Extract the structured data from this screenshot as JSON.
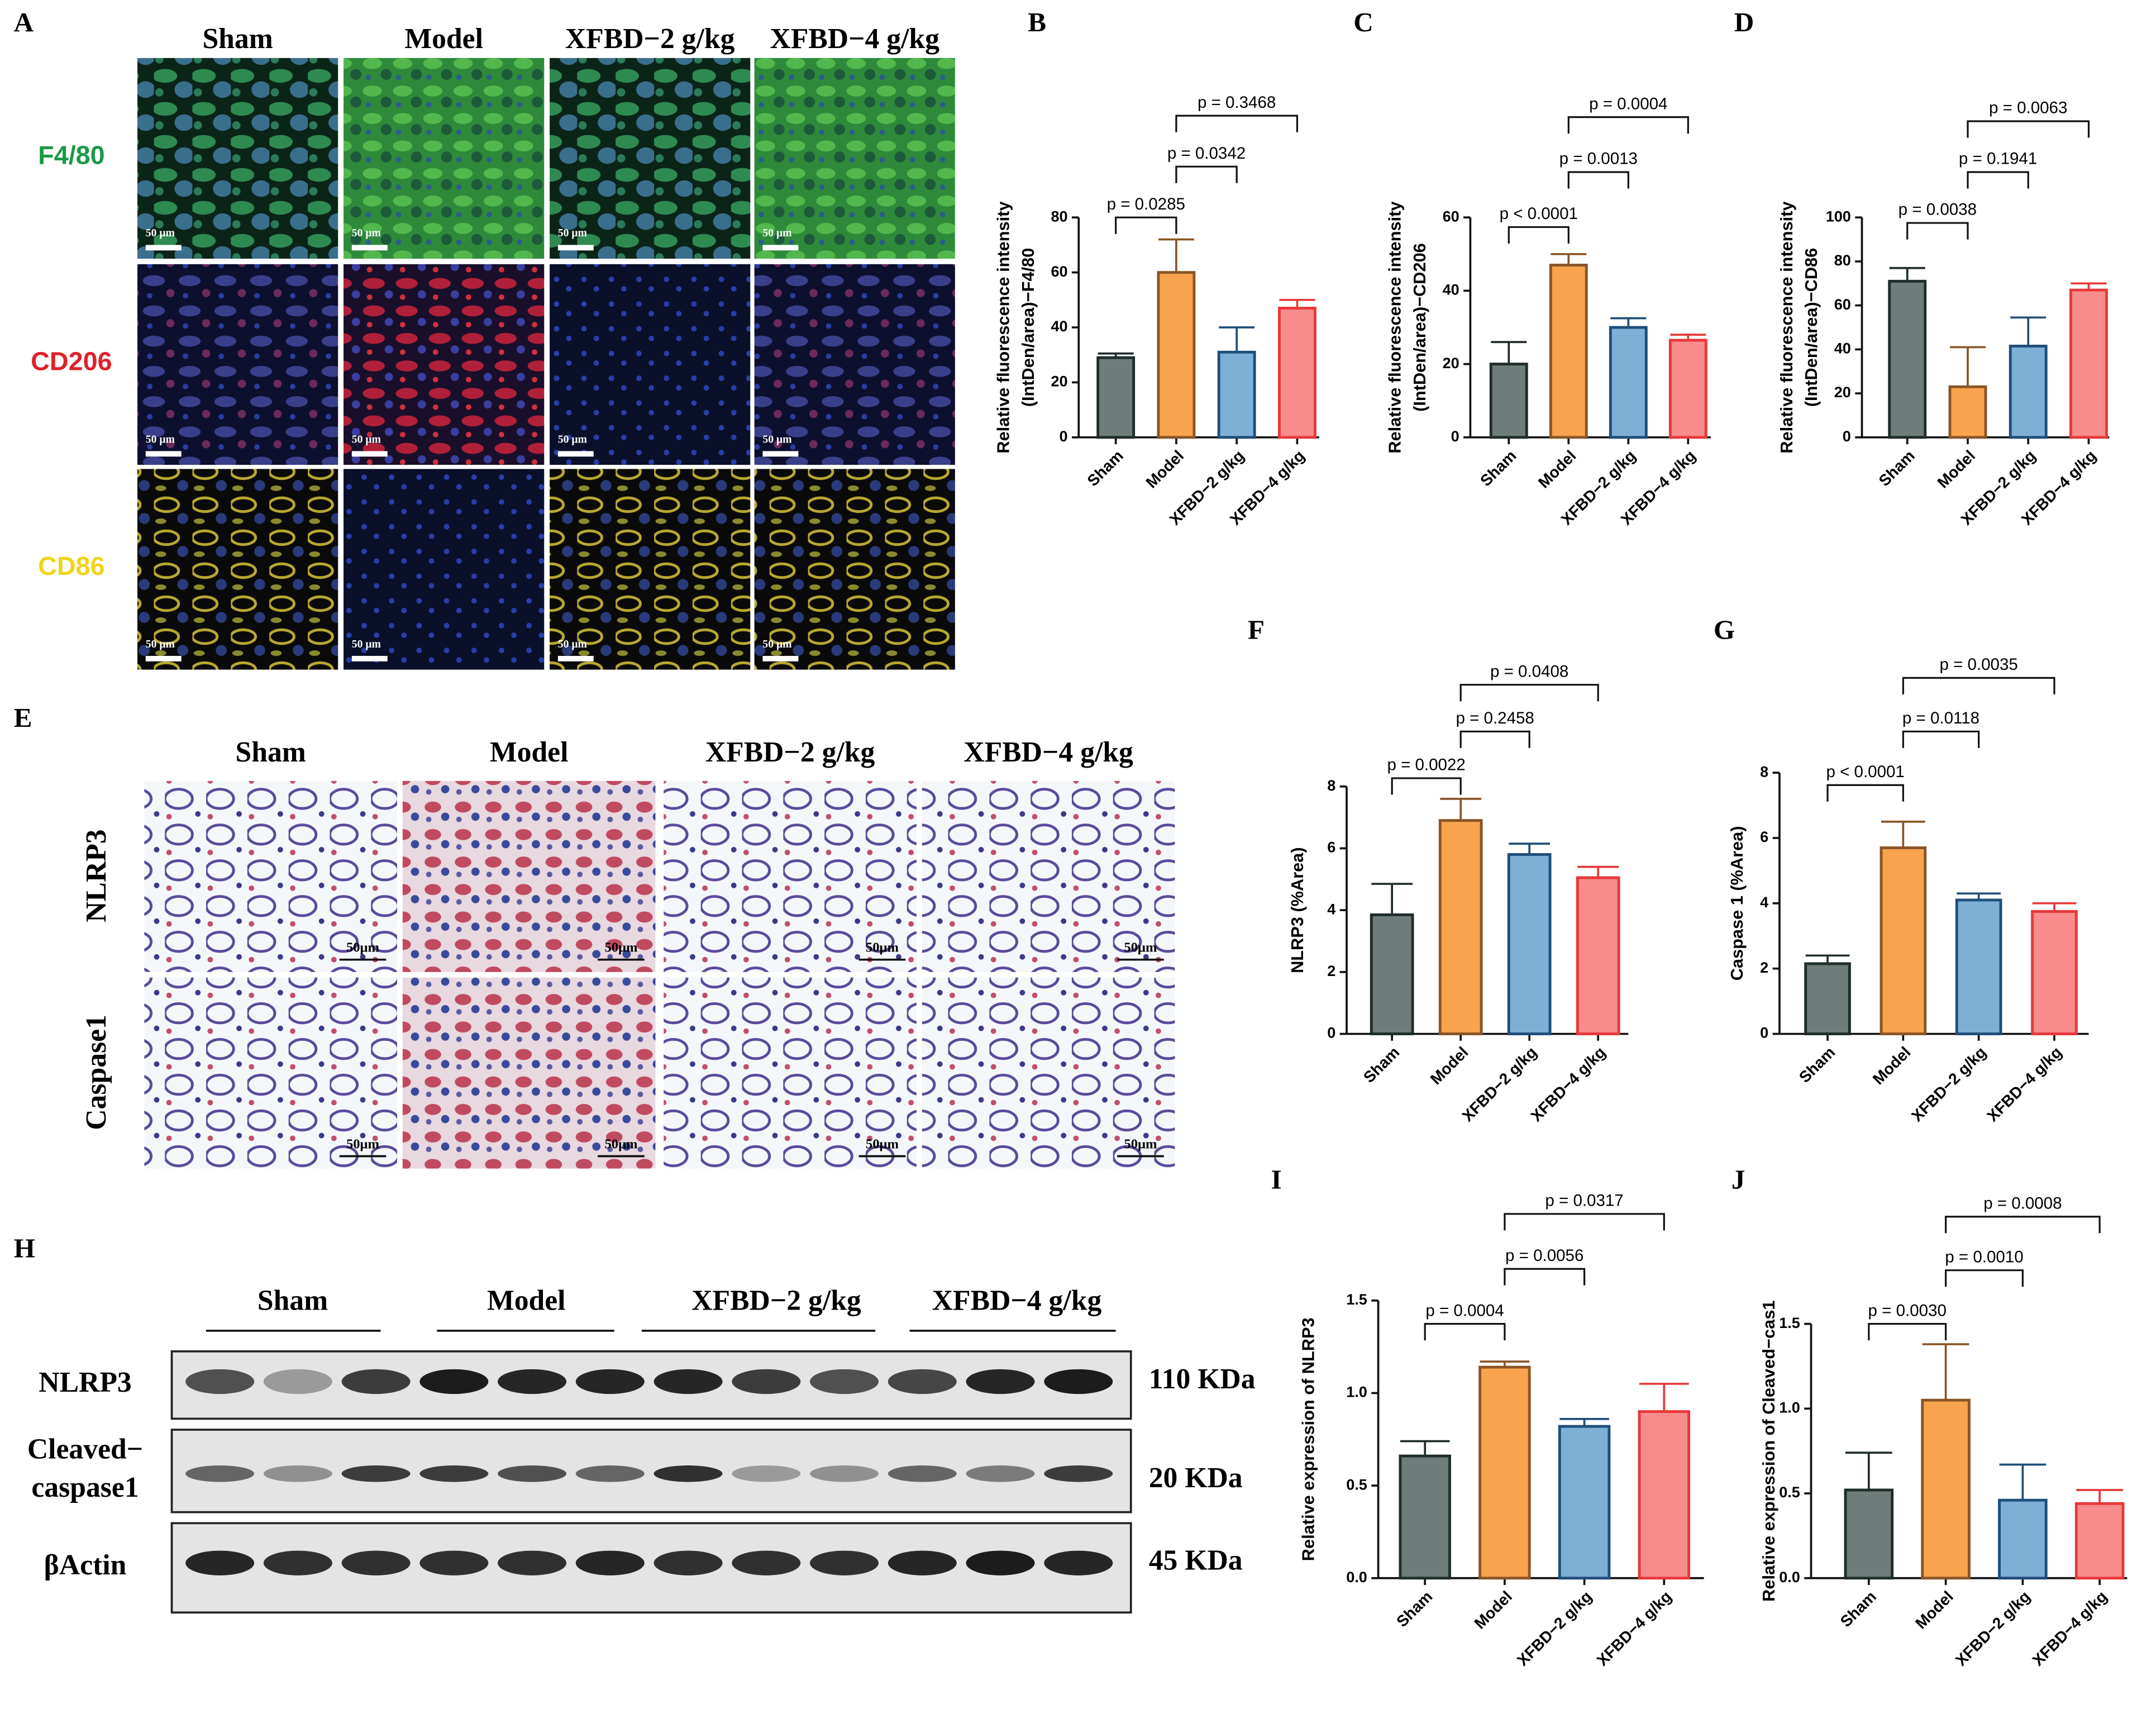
{
  "figure": {
    "panel_a": {
      "label": "A",
      "columns": [
        "Sham",
        "Model",
        "XFBD−2 g/kg",
        "XFBD−4 g/kg"
      ],
      "rows": [
        "F4/80",
        "CD206",
        "CD86"
      ],
      "scale_bar": "50 μm"
    },
    "panel_e": {
      "label": "E",
      "columns": [
        "Sham",
        "Model",
        "XFBD−2 g/kg",
        "XFBD−4 g/kg"
      ],
      "rows": [
        "NLRP3",
        "Caspase1"
      ],
      "scale_bar": "50μm"
    },
    "panel_h": {
      "label": "H",
      "columns": [
        "Sham",
        "Model",
        "XFBD−2 g/kg",
        "XFBD−4 g/kg"
      ],
      "rows": [
        [
          "NLRP3"
        ],
        [
          "Cleaved−",
          "caspase1"
        ],
        [
          "βActin"
        ]
      ],
      "sizes": [
        "110 KDa",
        "20 KDa",
        "45 KDa"
      ]
    }
  },
  "chart_data": [
    {
      "type": "bar",
      "panel": "B",
      "ylabel": [
        "Relative fluorescence intensity",
        "(IntDen/area)−F4/80"
      ],
      "categories": [
        "Sham",
        "Model",
        "XFBD−2 g/kg",
        "XFBD−4 g/kg"
      ],
      "values": [
        29,
        60,
        31,
        47
      ],
      "errors": [
        1.5,
        12,
        9,
        3
      ],
      "colors": [
        "#6f7d7a",
        "#f8a34e",
        "#7eb0d5",
        "#f88c8c"
      ],
      "edge_colors": [
        "#1f2d2b",
        "#8a5526",
        "#1f4e79",
        "#e8383a"
      ],
      "ylim": [
        0,
        80
      ],
      "yticks": [
        0,
        20,
        40,
        60,
        80
      ],
      "comparisons": [
        {
          "between": [
            "Sham",
            "Model"
          ],
          "label": "p = 0.0285"
        },
        {
          "between": [
            "Model",
            "XFBD−2 g/kg"
          ],
          "label": "p = 0.0342"
        },
        {
          "between": [
            "Model",
            "XFBD−4 g/kg"
          ],
          "label": "p = 0.3468"
        }
      ]
    },
    {
      "type": "bar",
      "panel": "C",
      "ylabel": [
        "Relative fluorescence intensity",
        "(IntDen/area)−CD206"
      ],
      "categories": [
        "Sham",
        "Model",
        "XFBD−2 g/kg",
        "XFBD−4 g/kg"
      ],
      "values": [
        20,
        47,
        30,
        26.5
      ],
      "errors": [
        6,
        3,
        2.5,
        1.5
      ],
      "colors": [
        "#6f7d7a",
        "#f8a34e",
        "#7eb0d5",
        "#f88c8c"
      ],
      "edge_colors": [
        "#1f2d2b",
        "#8a5526",
        "#1f4e79",
        "#e8383a"
      ],
      "ylim": [
        0,
        60
      ],
      "yticks": [
        0,
        20,
        40,
        60
      ],
      "comparisons": [
        {
          "between": [
            "Sham",
            "Model"
          ],
          "label": "p < 0.0001"
        },
        {
          "between": [
            "Model",
            "XFBD−2 g/kg"
          ],
          "label": "p = 0.0013"
        },
        {
          "between": [
            "Model",
            "XFBD−4 g/kg"
          ],
          "label": "p = 0.0004"
        }
      ]
    },
    {
      "type": "bar",
      "panel": "D",
      "ylabel": [
        "Relative fluorescence intensity",
        "(IntDen/area)−CD86"
      ],
      "categories": [
        "Sham",
        "Model",
        "XFBD−2 g/kg",
        "XFBD−4 g/kg"
      ],
      "values": [
        71,
        23,
        41.5,
        67
      ],
      "errors": [
        6,
        18,
        13,
        3
      ],
      "colors": [
        "#6f7d7a",
        "#f8a34e",
        "#7eb0d5",
        "#f88c8c"
      ],
      "edge_colors": [
        "#1f2d2b",
        "#8a5526",
        "#1f4e79",
        "#e8383a"
      ],
      "ylim": [
        0,
        100
      ],
      "yticks": [
        0,
        20,
        40,
        60,
        80,
        100
      ],
      "comparisons": [
        {
          "between": [
            "Sham",
            "Model"
          ],
          "label": "p = 0.0038"
        },
        {
          "between": [
            "Model",
            "XFBD−2 g/kg"
          ],
          "label": "p = 0.1941"
        },
        {
          "between": [
            "Model",
            "XFBD−4 g/kg"
          ],
          "label": "p = 0.0063"
        }
      ]
    },
    {
      "type": "bar",
      "panel": "F",
      "ylabel": [
        "NLRP3 (%Area)"
      ],
      "categories": [
        "Sham",
        "Model",
        "XFBD−2 g/kg",
        "XFBD−4 g/kg"
      ],
      "values": [
        3.85,
        6.9,
        5.8,
        5.05
      ],
      "errors": [
        1.0,
        0.7,
        0.35,
        0.35
      ],
      "colors": [
        "#6f7d7a",
        "#f8a34e",
        "#7eb0d5",
        "#f88c8c"
      ],
      "edge_colors": [
        "#1f2d2b",
        "#8a5526",
        "#1f4e79",
        "#e8383a"
      ],
      "ylim": [
        0,
        8
      ],
      "yticks": [
        0,
        2,
        4,
        6,
        8
      ],
      "comparisons": [
        {
          "between": [
            "Sham",
            "Model"
          ],
          "label": "p = 0.0022"
        },
        {
          "between": [
            "Model",
            "XFBD−2 g/kg"
          ],
          "label": "p = 0.2458"
        },
        {
          "between": [
            "Model",
            "XFBD−4 g/kg"
          ],
          "label": "p = 0.0408"
        }
      ]
    },
    {
      "type": "bar",
      "panel": "G",
      "ylabel": [
        "Caspase 1 (%Area)"
      ],
      "categories": [
        "Sham",
        "Model",
        "XFBD−2 g/kg",
        "XFBD−4 g/kg"
      ],
      "values": [
        2.15,
        5.7,
        4.1,
        3.75
      ],
      "errors": [
        0.25,
        0.8,
        0.2,
        0.25
      ],
      "colors": [
        "#6f7d7a",
        "#f8a34e",
        "#7eb0d5",
        "#f88c8c"
      ],
      "edge_colors": [
        "#1f2d2b",
        "#8a5526",
        "#1f4e79",
        "#e8383a"
      ],
      "ylim": [
        0,
        8
      ],
      "yticks": [
        0,
        2,
        4,
        6,
        8
      ],
      "comparisons": [
        {
          "between": [
            "Sham",
            "Model"
          ],
          "label": "p < 0.0001"
        },
        {
          "between": [
            "Model",
            "XFBD−2 g/kg"
          ],
          "label": "p = 0.0118"
        },
        {
          "between": [
            "Model",
            "XFBD−4 g/kg"
          ],
          "label": "p = 0.0035"
        }
      ]
    },
    {
      "type": "bar",
      "panel": "I",
      "ylabel": [
        "Relative expression of NLRP3"
      ],
      "categories": [
        "Sham",
        "Model",
        "XFBD−2 g/kg",
        "XFBD−4 g/kg"
      ],
      "values": [
        0.66,
        1.14,
        0.82,
        0.9
      ],
      "errors": [
        0.08,
        0.03,
        0.04,
        0.15
      ],
      "colors": [
        "#6f7d7a",
        "#f8a34e",
        "#7eb0d5",
        "#f88c8c"
      ],
      "edge_colors": [
        "#1f2d2b",
        "#8a5526",
        "#1f4e79",
        "#e8383a"
      ],
      "ylim": [
        0,
        1.5
      ],
      "yticks": [
        {
          "value": 0,
          "label": "0.0"
        },
        0.5,
        {
          "value": 1,
          "label": "1.0"
        },
        1.5
      ],
      "comparisons": [
        {
          "between": [
            "Sham",
            "Model"
          ],
          "label": "p = 0.0004"
        },
        {
          "between": [
            "Model",
            "XFBD−2 g/kg"
          ],
          "label": "p = 0.0056"
        },
        {
          "between": [
            "Model",
            "XFBD−4 g/kg"
          ],
          "label": "p = 0.0317"
        }
      ]
    },
    {
      "type": "bar",
      "panel": "J",
      "ylabel": [
        "Relative expression of Cleaved−cas1"
      ],
      "categories": [
        "Sham",
        "Model",
        "XFBD−2 g/kg",
        "XFBD−4 g/kg"
      ],
      "values": [
        0.52,
        1.05,
        0.46,
        0.44
      ],
      "errors": [
        0.22,
        0.33,
        0.21,
        0.08
      ],
      "colors": [
        "#6f7d7a",
        "#f8a34e",
        "#7eb0d5",
        "#f88c8c"
      ],
      "edge_colors": [
        "#1f2d2b",
        "#8a5526",
        "#1f4e79",
        "#e8383a"
      ],
      "ylim": [
        0,
        1.5
      ],
      "yticks": [
        {
          "value": 0,
          "label": "0.0"
        },
        0.5,
        {
          "value": 1,
          "label": "1.0"
        },
        1.5
      ],
      "comparisons": [
        {
          "between": [
            "Sham",
            "Model"
          ],
          "label": "p = 0.0030"
        },
        {
          "between": [
            "Model",
            "XFBD−2 g/kg"
          ],
          "label": "p = 0.0010"
        },
        {
          "between": [
            "Model",
            "XFBD−4 g/kg"
          ],
          "label": "p = 0.0008"
        }
      ]
    }
  ]
}
